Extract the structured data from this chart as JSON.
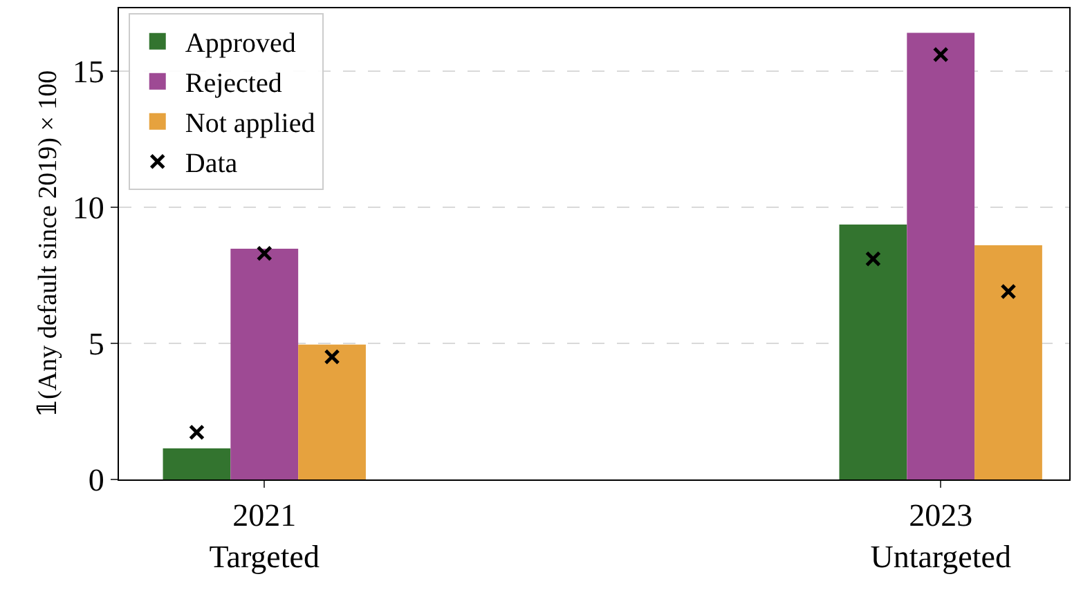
{
  "chart_data": {
    "type": "bar",
    "ylabel": "𝟙(Any default since 2019) × 100",
    "categories": [
      "2021\nTargeted",
      "2023\nUntargeted"
    ],
    "series": [
      {
        "name": "Approved",
        "color": "#33742f",
        "values": [
          1.14,
          9.36
        ]
      },
      {
        "name": "Rejected",
        "color": "#9e4a94",
        "values": [
          8.47,
          16.4
        ]
      },
      {
        "name": "Not applied",
        "color": "#e6a23e",
        "values": [
          4.95,
          8.6
        ]
      },
      {
        "name": "Data",
        "type": "scatter",
        "color": "#000000",
        "marker": "cross",
        "x": [
          "2021\nTargeted",
          "2021\nTargeted",
          "2021\nTargeted",
          "2023\nUntargeted",
          "2023\nUntargeted",
          "2023\nUntargeted"
        ],
        "values": [
          1.73,
          8.3,
          4.5,
          8.1,
          15.6,
          6.9
        ]
      }
    ],
    "ylim": [
      0,
      17.3
    ],
    "yticks": [
      0,
      5,
      10,
      15
    ],
    "grid": "y",
    "legend": "top left"
  }
}
